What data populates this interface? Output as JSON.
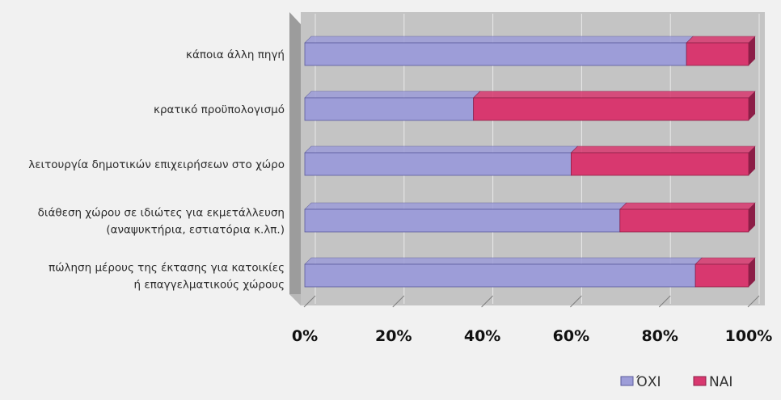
{
  "chart_data": {
    "type": "bar",
    "orientation": "horizontal",
    "stacked": "percent",
    "categories": [
      [
        "κάποια άλλη πηγή"
      ],
      [
        "κρατικό προϋπολογισμό"
      ],
      [
        "λειτουργία δημοτικών επιχειρήσεων στο χώρο"
      ],
      [
        "διάθεση χώρου σε ιδιώτες για εκμετάλλευση",
        "(αναψυκτήρια, εστιατόρια κ.λπ.)"
      ],
      [
        "πώληση μέρους της έκτασης για κατοικίες",
        "ή επαγγελματικούς χώρους"
      ]
    ],
    "series": [
      {
        "name": "ΌΧΙ",
        "values": [
          86,
          38,
          60,
          71,
          88
        ]
      },
      {
        "name": "ΝΑΙ",
        "values": [
          14,
          62,
          40,
          29,
          12
        ]
      }
    ],
    "xlim": [
      0,
      100
    ],
    "x_ticks": [
      "0%",
      "20%",
      "40%",
      "60%",
      "80%",
      "100%"
    ],
    "grid": true,
    "legend_position": "bottom-right",
    "colors": {
      "series": [
        "#9d9dd8",
        "#d8386f"
      ],
      "series_dark": [
        "#5b5b9c",
        "#8c1e47"
      ],
      "plot_wall": "#c4c4c4",
      "plot_floor": "#9c9c9c",
      "gridline": "#e9e9e9",
      "page_background": "#f1f1f1"
    }
  }
}
